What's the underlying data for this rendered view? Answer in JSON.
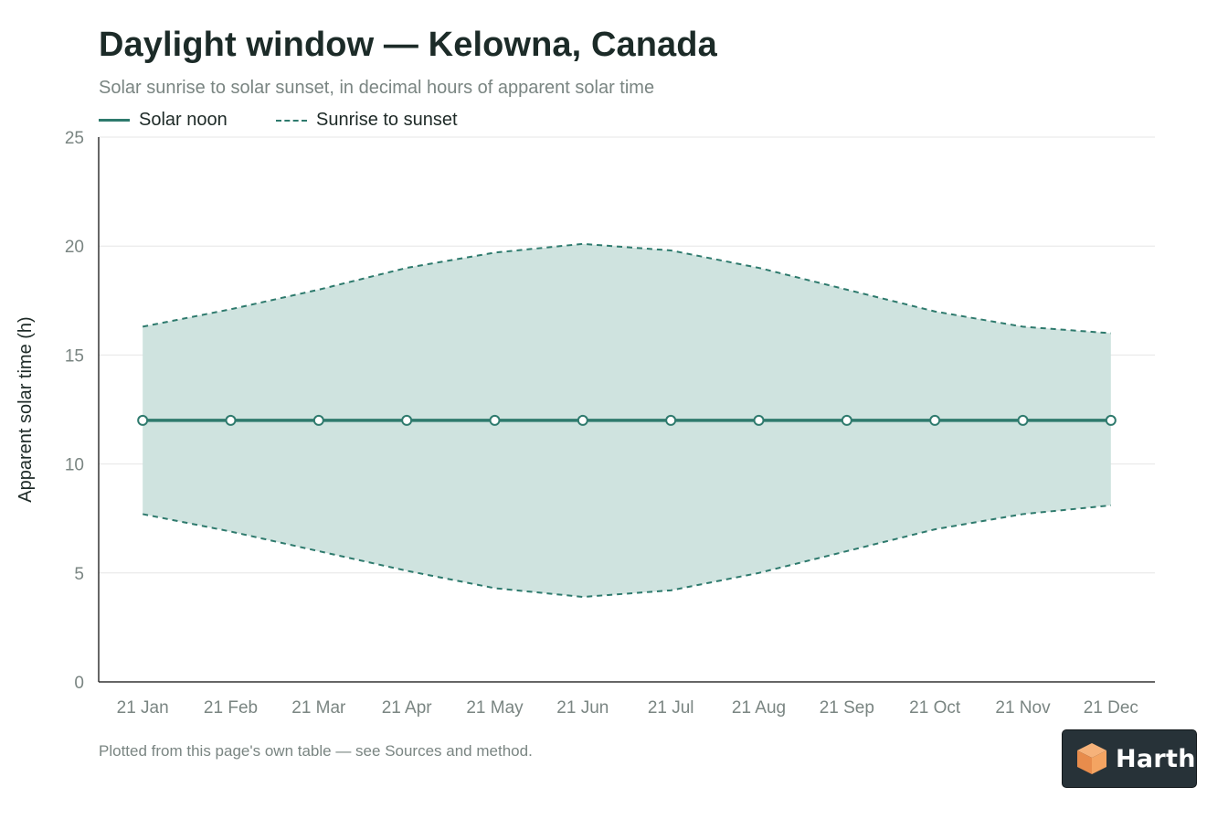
{
  "header": {
    "title": "Daylight window — Kelowna, Canada",
    "subtitle": "Solar sunrise to solar sunset, in decimal hours of apparent solar time"
  },
  "legend": {
    "solar_noon": "Solar noon",
    "sunrise_sunset": "Sunrise to sunset"
  },
  "footnote": "Plotted from this page's own table — see Sources and method.",
  "logo": {
    "text": "Harth",
    "icon": "cube-icon"
  },
  "colors": {
    "line": "#2e7a6d",
    "band_fill": "#cfe3df",
    "axis": "#333333",
    "grid": "#e6e6e6",
    "tick_text": "#7a8582"
  },
  "chart_data": {
    "type": "area",
    "title": "Daylight window — Kelowna, Canada",
    "subtitle": "Solar sunrise to solar sunset, in decimal hours of apparent solar time",
    "xlabel": "",
    "ylabel": "Apparent solar time (h)",
    "categories": [
      "21 Jan",
      "21 Feb",
      "21 Mar",
      "21 Apr",
      "21 May",
      "21 Jun",
      "21 Jul",
      "21 Aug",
      "21 Sep",
      "21 Oct",
      "21 Nov",
      "21 Dec"
    ],
    "ylim": [
      0,
      25
    ],
    "yticks": [
      0,
      5,
      10,
      15,
      20,
      25
    ],
    "grid": true,
    "legend_position": "top-left",
    "series": [
      {
        "name": "Solar noon",
        "style": "solid-with-markers",
        "values": [
          12,
          12,
          12,
          12,
          12,
          12,
          12,
          12,
          12,
          12,
          12,
          12
        ]
      },
      {
        "name": "Sunrise to sunset",
        "style": "dashed-band",
        "sunrise": [
          7.7,
          6.9,
          6.0,
          5.1,
          4.3,
          3.9,
          4.2,
          5.0,
          6.0,
          7.0,
          7.7,
          8.1
        ],
        "sunset": [
          16.3,
          17.1,
          18.0,
          19.0,
          19.7,
          20.1,
          19.8,
          19.0,
          18.0,
          17.0,
          16.3,
          16.0
        ]
      }
    ]
  }
}
